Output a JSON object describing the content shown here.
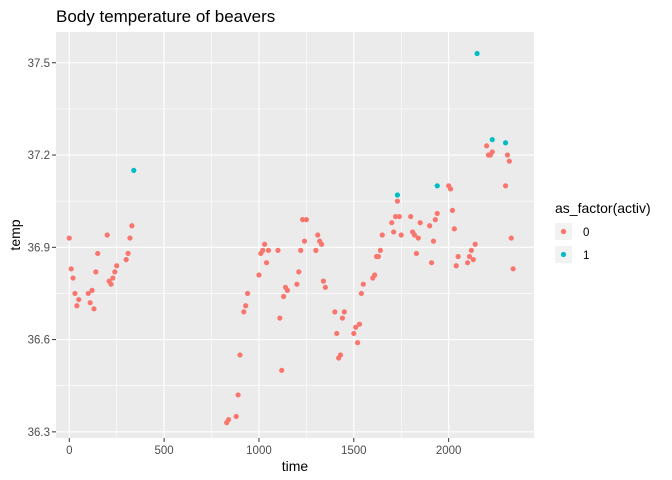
{
  "chart_data": {
    "type": "scatter",
    "title": "Body temperature of beavers",
    "xlabel": "time",
    "ylabel": "temp",
    "xlim": [
      -70,
      2450
    ],
    "ylim": [
      36.28,
      37.6
    ],
    "xticks": [
      0,
      500,
      1000,
      1500,
      2000
    ],
    "yticks": [
      36.3,
      36.6,
      36.9,
      37.2,
      37.5
    ],
    "xtick_labels": [
      "0",
      "500",
      "1000",
      "1500",
      "2000"
    ],
    "ytick_labels": [
      "36.3",
      "36.6",
      "36.9",
      "37.2",
      "37.5"
    ],
    "grid": true,
    "legend": {
      "title": "as_factor(activ)",
      "position": "right",
      "entries": [
        {
          "label": "0",
          "color": "#F8766D"
        },
        {
          "label": "1",
          "color": "#00BFC4"
        }
      ]
    },
    "series": [
      {
        "name": "0",
        "color": "#F8766D",
        "points": [
          [
            0,
            36.93
          ],
          [
            10,
            36.83
          ],
          [
            20,
            36.8
          ],
          [
            30,
            36.75
          ],
          [
            40,
            36.71
          ],
          [
            50,
            36.73
          ],
          [
            100,
            36.75
          ],
          [
            110,
            36.72
          ],
          [
            120,
            36.76
          ],
          [
            130,
            36.7
          ],
          [
            140,
            36.82
          ],
          [
            150,
            36.88
          ],
          [
            200,
            36.94
          ],
          [
            210,
            36.79
          ],
          [
            220,
            36.78
          ],
          [
            230,
            36.8
          ],
          [
            240,
            36.82
          ],
          [
            250,
            36.84
          ],
          [
            300,
            36.86
          ],
          [
            310,
            36.88
          ],
          [
            320,
            36.93
          ],
          [
            330,
            36.97
          ],
          [
            830,
            36.33
          ],
          [
            840,
            36.34
          ],
          [
            880,
            36.35
          ],
          [
            890,
            36.42
          ],
          [
            900,
            36.55
          ],
          [
            920,
            36.69
          ],
          [
            930,
            36.71
          ],
          [
            940,
            36.75
          ],
          [
            1000,
            36.81
          ],
          [
            1010,
            36.88
          ],
          [
            1020,
            36.89
          ],
          [
            1030,
            36.91
          ],
          [
            1040,
            36.85
          ],
          [
            1050,
            36.89
          ],
          [
            1100,
            36.89
          ],
          [
            1110,
            36.67
          ],
          [
            1120,
            36.5
          ],
          [
            1130,
            36.74
          ],
          [
            1140,
            36.77
          ],
          [
            1150,
            36.76
          ],
          [
            1200,
            36.78
          ],
          [
            1210,
            36.82
          ],
          [
            1220,
            36.89
          ],
          [
            1230,
            36.99
          ],
          [
            1240,
            36.92
          ],
          [
            1250,
            36.99
          ],
          [
            1300,
            36.89
          ],
          [
            1310,
            36.94
          ],
          [
            1320,
            36.92
          ],
          [
            1330,
            36.91
          ],
          [
            1340,
            36.79
          ],
          [
            1350,
            36.77
          ],
          [
            1400,
            36.69
          ],
          [
            1410,
            36.62
          ],
          [
            1420,
            36.54
          ],
          [
            1430,
            36.55
          ],
          [
            1440,
            36.67
          ],
          [
            1450,
            36.69
          ],
          [
            1500,
            36.62
          ],
          [
            1510,
            36.64
          ],
          [
            1520,
            36.59
          ],
          [
            1530,
            36.65
          ],
          [
            1540,
            36.75
          ],
          [
            1550,
            36.78
          ],
          [
            1600,
            36.8
          ],
          [
            1610,
            36.81
          ],
          [
            1620,
            36.87
          ],
          [
            1630,
            36.87
          ],
          [
            1640,
            36.89
          ],
          [
            1650,
            36.94
          ],
          [
            1700,
            36.98
          ],
          [
            1710,
            36.95
          ],
          [
            1720,
            37.0
          ],
          [
            1730,
            37.05
          ],
          [
            1740,
            37.0
          ],
          [
            1750,
            36.94
          ],
          [
            1800,
            37.0
          ],
          [
            1810,
            36.95
          ],
          [
            1820,
            36.94
          ],
          [
            1830,
            36.88
          ],
          [
            1840,
            36.93
          ],
          [
            1850,
            36.98
          ],
          [
            1900,
            36.97
          ],
          [
            1910,
            36.85
          ],
          [
            1920,
            36.92
          ],
          [
            1930,
            36.99
          ],
          [
            1940,
            37.01
          ],
          [
            2000,
            37.1
          ],
          [
            2010,
            37.09
          ],
          [
            2020,
            37.02
          ],
          [
            2030,
            36.96
          ],
          [
            2040,
            36.84
          ],
          [
            2050,
            36.87
          ],
          [
            2100,
            36.85
          ],
          [
            2110,
            36.87
          ],
          [
            2120,
            36.89
          ],
          [
            2130,
            36.86
          ],
          [
            2140,
            36.91
          ],
          [
            2200,
            37.23
          ],
          [
            2210,
            37.2
          ],
          [
            2220,
            37.2
          ],
          [
            2230,
            37.21
          ],
          [
            2300,
            37.1
          ],
          [
            2310,
            37.2
          ],
          [
            2320,
            37.18
          ],
          [
            2330,
            36.93
          ],
          [
            2340,
            36.83
          ]
        ]
      },
      {
        "name": "1",
        "color": "#00BFC4",
        "points": [
          [
            340,
            37.15
          ],
          [
            1730,
            37.07
          ],
          [
            1940,
            37.1
          ],
          [
            2150,
            37.53
          ],
          [
            2230,
            37.25
          ],
          [
            2300,
            37.24
          ]
        ]
      }
    ]
  }
}
